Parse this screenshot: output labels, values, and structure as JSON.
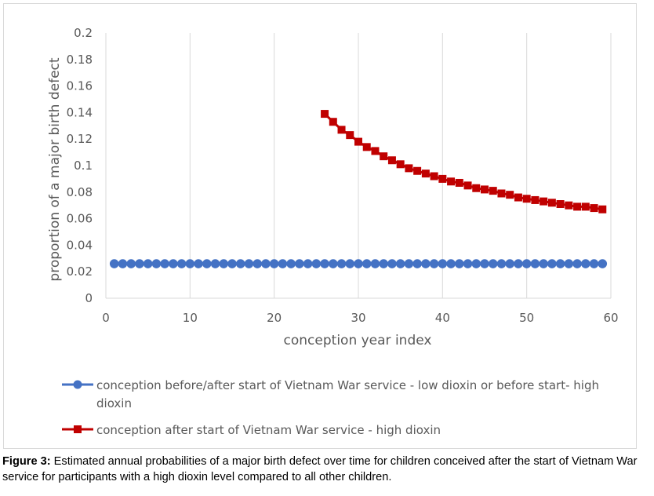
{
  "chart_data": {
    "type": "line",
    "xlabel": "conception year index",
    "ylabel": "proportion of a major birth defect",
    "xlim": [
      0,
      60
    ],
    "ylim": [
      0,
      0.2
    ],
    "x_ticks": [
      0,
      10,
      20,
      30,
      40,
      50,
      60
    ],
    "y_ticks": [
      "0",
      "0.02",
      "0.04",
      "0.06",
      "0.08",
      "0.1",
      "0.12",
      "0.14",
      "0.16",
      "0.18",
      "0.2"
    ],
    "grid": "vertical",
    "legend_position": "bottom",
    "series": [
      {
        "name": "conception before/after start of Vietnam War service - low dioxin or before start- high dioxin",
        "legend_line1": "conception before/after start of Vietnam War service - low dioxin or before start- high",
        "legend_line2": "dioxin",
        "marker": "circle",
        "color": "#4472C4",
        "x": [
          1,
          59
        ],
        "constant_value": 0.026
      },
      {
        "name": "conception after start of Vietnam War service - high dioxin",
        "legend_line1": "conception after start of Vietnam War service - high dioxin",
        "marker": "square",
        "color": "#C00000",
        "x": [
          26,
          27,
          28,
          29,
          30,
          31,
          32,
          33,
          34,
          35,
          36,
          37,
          38,
          39,
          40,
          41,
          42,
          43,
          44,
          45,
          46,
          47,
          48,
          49,
          50,
          51,
          52,
          53,
          54,
          55,
          56,
          57,
          58,
          59
        ],
        "values": [
          0.139,
          0.133,
          0.127,
          0.123,
          0.118,
          0.114,
          0.111,
          0.107,
          0.104,
          0.101,
          0.098,
          0.096,
          0.094,
          0.092,
          0.09,
          0.088,
          0.087,
          0.085,
          0.083,
          0.082,
          0.081,
          0.079,
          0.078,
          0.076,
          0.075,
          0.074,
          0.073,
          0.072,
          0.071,
          0.07,
          0.069,
          0.069,
          0.068,
          0.067
        ]
      }
    ]
  },
  "caption": {
    "label": "Figure 3:",
    "text": " Estimated annual probabilities of a major birth defect over time for children conceived after the start of Vietnam War service for participants with a high dioxin level compared to all other children."
  }
}
